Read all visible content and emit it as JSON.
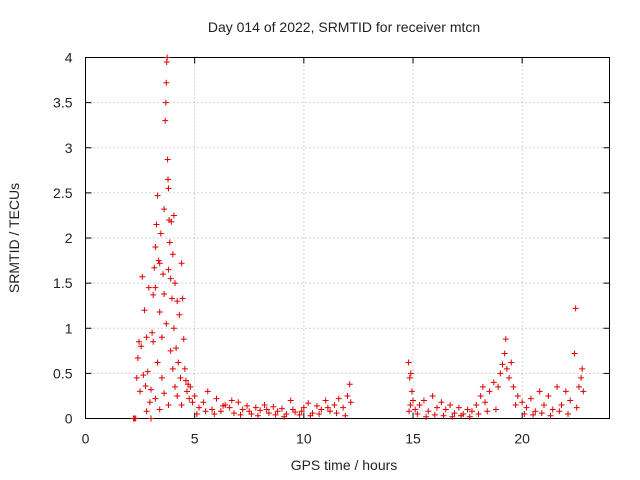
{
  "chart_data": {
    "type": "scatter",
    "title": "Day 014 of 2022, SRMTID for receiver mtcn",
    "xlabel": "GPS time / hours",
    "ylabel": "SRMTID / TECUs",
    "xlim": [
      0,
      24
    ],
    "ylim": [
      0,
      4
    ],
    "xticks": [
      "0",
      "5",
      "10",
      "15",
      "20"
    ],
    "yticks": [
      "0",
      "0.5",
      "1",
      "1.5",
      "2",
      "2.5",
      "3",
      "3.5",
      "4"
    ],
    "grid": true,
    "marker": "plus",
    "color": "#dd0000",
    "series": [
      {
        "name": "SRMTID",
        "points": [
          [
            2.2,
            0.0
          ],
          [
            2.25,
            0.0
          ],
          [
            2.3,
            0.0
          ],
          [
            2.35,
            0.45
          ],
          [
            2.4,
            0.67
          ],
          [
            2.45,
            0.85
          ],
          [
            2.5,
            0.3
          ],
          [
            2.55,
            0.8
          ],
          [
            2.6,
            1.57
          ],
          [
            2.65,
            0.48
          ],
          [
            2.7,
            1.2
          ],
          [
            2.75,
            0.36
          ],
          [
            2.8,
            0.9
          ],
          [
            2.85,
            0.52
          ],
          [
            2.9,
            1.45
          ],
          [
            2.95,
            0.18
          ],
          [
            3.0,
            0.0
          ],
          [
            3.05,
            0.95
          ],
          [
            3.1,
            1.37
          ],
          [
            3.15,
            1.67
          ],
          [
            3.2,
            1.9
          ],
          [
            3.25,
            2.15
          ],
          [
            3.3,
            2.47
          ],
          [
            3.35,
            1.75
          ],
          [
            3.4,
            1.18
          ],
          [
            3.45,
            2.05
          ],
          [
            3.5,
            0.9
          ],
          [
            3.55,
            1.6
          ],
          [
            3.6,
            2.32
          ],
          [
            3.65,
            3.3
          ],
          [
            3.68,
            3.5
          ],
          [
            3.7,
            3.72
          ],
          [
            3.72,
            3.95
          ],
          [
            3.74,
            4.0
          ],
          [
            3.76,
            2.87
          ],
          [
            3.78,
            2.65
          ],
          [
            3.8,
            2.55
          ],
          [
            3.83,
            2.2
          ],
          [
            3.86,
            1.95
          ],
          [
            3.9,
            1.55
          ],
          [
            3.93,
            2.18
          ],
          [
            3.96,
            1.33
          ],
          [
            4.0,
            1.82
          ],
          [
            4.05,
            1.0
          ],
          [
            4.1,
            1.5
          ],
          [
            4.15,
            0.78
          ],
          [
            4.2,
            1.3
          ],
          [
            4.25,
            0.62
          ],
          [
            4.3,
            1.15
          ],
          [
            4.35,
            0.45
          ],
          [
            4.4,
            1.72
          ],
          [
            4.45,
            1.33
          ],
          [
            4.5,
            0.88
          ],
          [
            4.55,
            0.55
          ],
          [
            4.6,
            0.42
          ],
          [
            4.65,
            0.3
          ],
          [
            4.7,
            0.38
          ],
          [
            4.75,
            0.22
          ],
          [
            4.8,
            0.35
          ],
          [
            4.9,
            0.18
          ],
          [
            3.1,
            0.85
          ],
          [
            3.3,
            0.62
          ],
          [
            3.5,
            0.45
          ],
          [
            3.7,
            1.05
          ],
          [
            3.9,
            0.75
          ],
          [
            4.1,
            0.35
          ],
          [
            3.2,
            0.22
          ],
          [
            3.4,
            0.1
          ],
          [
            3.6,
            0.28
          ],
          [
            3.8,
            0.15
          ],
          [
            4.0,
            0.55
          ],
          [
            4.2,
            0.25
          ],
          [
            4.4,
            0.15
          ],
          [
            2.8,
            0.08
          ],
          [
            3.0,
            0.32
          ],
          [
            3.6,
            1.38
          ],
          [
            3.4,
            1.72
          ],
          [
            3.2,
            1.45
          ],
          [
            3.8,
            1.65
          ],
          [
            4.05,
            2.25
          ],
          [
            5.0,
            0.25
          ],
          [
            5.2,
            0.12
          ],
          [
            5.4,
            0.18
          ],
          [
            5.6,
            0.3
          ],
          [
            5.8,
            0.1
          ],
          [
            6.0,
            0.22
          ],
          [
            6.2,
            0.08
          ],
          [
            6.4,
            0.15
          ],
          [
            6.6,
            0.12
          ],
          [
            6.8,
            0.06
          ],
          [
            7.0,
            0.18
          ],
          [
            7.2,
            0.1
          ],
          [
            7.4,
            0.14
          ],
          [
            7.6,
            0.05
          ],
          [
            7.8,
            0.12
          ],
          [
            8.0,
            0.09
          ],
          [
            8.2,
            0.15
          ],
          [
            8.4,
            0.06
          ],
          [
            8.6,
            0.13
          ],
          [
            8.8,
            0.08
          ],
          [
            9.0,
            0.11
          ],
          [
            9.2,
            0.05
          ],
          [
            9.4,
            0.2
          ],
          [
            9.6,
            0.07
          ],
          [
            9.8,
            0.04
          ],
          [
            10.0,
            0.12
          ],
          [
            10.2,
            0.17
          ],
          [
            10.4,
            0.06
          ],
          [
            10.6,
            0.14
          ],
          [
            10.8,
            0.1
          ],
          [
            11.0,
            0.2
          ],
          [
            11.2,
            0.08
          ],
          [
            11.4,
            0.15
          ],
          [
            11.6,
            0.22
          ],
          [
            11.8,
            0.12
          ],
          [
            12.0,
            0.25
          ],
          [
            12.1,
            0.38
          ],
          [
            12.15,
            0.18
          ],
          [
            5.1,
            0.05
          ],
          [
            5.5,
            0.08
          ],
          [
            5.9,
            0.05
          ],
          [
            6.3,
            0.14
          ],
          [
            6.7,
            0.2
          ],
          [
            7.1,
            0.04
          ],
          [
            7.5,
            0.08
          ],
          [
            7.9,
            0.03
          ],
          [
            8.3,
            0.1
          ],
          [
            8.7,
            0.04
          ],
          [
            9.1,
            0.02
          ],
          [
            9.5,
            0.1
          ],
          [
            9.9,
            0.08
          ],
          [
            10.3,
            0.03
          ],
          [
            10.7,
            0.05
          ],
          [
            11.1,
            0.12
          ],
          [
            11.5,
            0.06
          ],
          [
            11.9,
            0.03
          ],
          [
            14.8,
            0.62
          ],
          [
            14.85,
            0.45
          ],
          [
            14.9,
            0.5
          ],
          [
            14.95,
            0.3
          ],
          [
            15.0,
            0.2
          ],
          [
            15.1,
            0.1
          ],
          [
            15.3,
            0.15
          ],
          [
            15.5,
            0.2
          ],
          [
            15.7,
            0.08
          ],
          [
            15.9,
            0.25
          ],
          [
            16.1,
            0.12
          ],
          [
            16.3,
            0.18
          ],
          [
            16.5,
            0.1
          ],
          [
            16.7,
            0.15
          ],
          [
            16.9,
            0.06
          ],
          [
            17.1,
            0.12
          ],
          [
            17.3,
            0.05
          ],
          [
            17.5,
            0.1
          ],
          [
            17.7,
            0.08
          ],
          [
            17.9,
            0.15
          ],
          [
            18.1,
            0.25
          ],
          [
            18.2,
            0.35
          ],
          [
            18.3,
            0.18
          ],
          [
            18.5,
            0.3
          ],
          [
            18.7,
            0.4
          ],
          [
            18.9,
            0.35
          ],
          [
            19.0,
            0.5
          ],
          [
            19.1,
            0.6
          ],
          [
            19.2,
            0.72
          ],
          [
            19.25,
            0.88
          ],
          [
            19.3,
            0.55
          ],
          [
            19.4,
            0.45
          ],
          [
            19.5,
            0.62
          ],
          [
            19.6,
            0.35
          ],
          [
            19.8,
            0.25
          ],
          [
            20.0,
            0.18
          ],
          [
            20.2,
            0.12
          ],
          [
            20.4,
            0.22
          ],
          [
            20.6,
            0.08
          ],
          [
            20.8,
            0.3
          ],
          [
            21.0,
            0.15
          ],
          [
            21.2,
            0.25
          ],
          [
            21.4,
            0.1
          ],
          [
            21.6,
            0.35
          ],
          [
            21.8,
            0.15
          ],
          [
            22.0,
            0.3
          ],
          [
            22.2,
            0.2
          ],
          [
            22.4,
            0.72
          ],
          [
            22.45,
            1.22
          ],
          [
            22.6,
            0.35
          ],
          [
            22.7,
            0.45
          ],
          [
            22.8,
            0.3
          ],
          [
            22.75,
            0.55
          ],
          [
            15.2,
            0.05
          ],
          [
            15.6,
            0.02
          ],
          [
            16.0,
            0.04
          ],
          [
            16.4,
            0.03
          ],
          [
            16.8,
            0.02
          ],
          [
            17.2,
            0.03
          ],
          [
            17.6,
            0.02
          ],
          [
            18.0,
            0.05
          ],
          [
            18.4,
            0.08
          ],
          [
            18.8,
            0.1
          ],
          [
            19.7,
            0.15
          ],
          [
            20.1,
            0.05
          ],
          [
            20.5,
            0.04
          ],
          [
            20.9,
            0.06
          ],
          [
            21.3,
            0.03
          ],
          [
            21.7,
            0.08
          ],
          [
            22.1,
            0.05
          ],
          [
            22.5,
            0.12
          ],
          [
            14.82,
            0.08
          ],
          [
            14.88,
            0.15
          ]
        ]
      }
    ]
  }
}
